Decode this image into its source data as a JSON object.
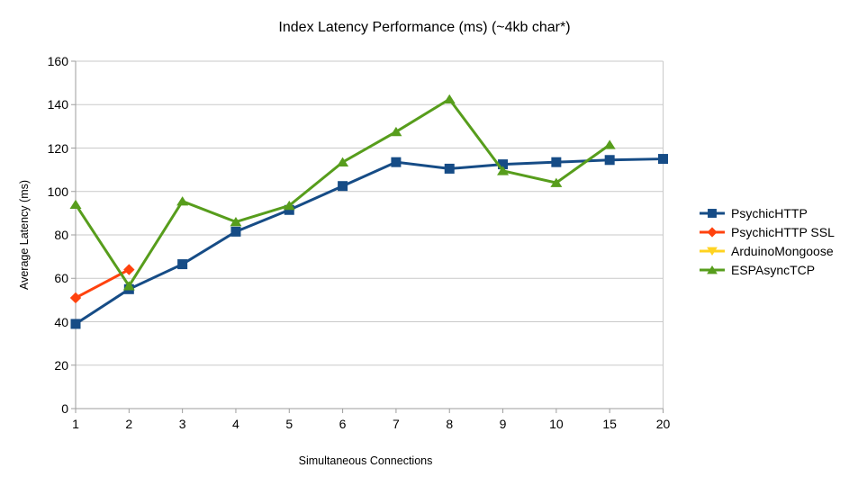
{
  "chart_data": {
    "type": "line",
    "title": "Index Latency Performance (ms) (~4kb char*)",
    "xlabel": "Simultaneous Connections",
    "ylabel": "Average Latency (ms)",
    "categories": [
      "1",
      "2",
      "3",
      "4",
      "5",
      "6",
      "7",
      "8",
      "9",
      "10",
      "15",
      "20"
    ],
    "ylim": [
      0,
      160
    ],
    "ytick_step": 20,
    "grid": true,
    "legend_position": "right",
    "series": [
      {
        "name": "PsychicHTTP",
        "color": "#164C86",
        "marker": "square",
        "values": [
          39,
          55,
          66.5,
          81.5,
          91.5,
          102.5,
          113.5,
          110.5,
          112.5,
          113.5,
          114.5,
          115
        ]
      },
      {
        "name": "PsychicHTTP SSL",
        "color": "#FF420E",
        "marker": "diamond",
        "values": [
          51,
          64,
          null,
          null,
          null,
          null,
          null,
          null,
          null,
          null,
          null,
          null
        ]
      },
      {
        "name": "ArduinoMongoose",
        "color": "#FFD320",
        "marker": "triangle-down",
        "values": [
          null,
          null,
          null,
          null,
          null,
          null,
          null,
          null,
          null,
          null,
          null,
          null
        ]
      },
      {
        "name": "ESPAsyncTCP",
        "color": "#579D1C",
        "marker": "triangle-up",
        "values": [
          94,
          56.5,
          95.5,
          86,
          93.5,
          113.5,
          127.5,
          142.5,
          109.5,
          104,
          121.5,
          null
        ]
      }
    ]
  },
  "colors": {
    "background": "#ffffff",
    "grid": "#c9c9c9",
    "axis": "#9e9e9e",
    "text": "#000000"
  }
}
